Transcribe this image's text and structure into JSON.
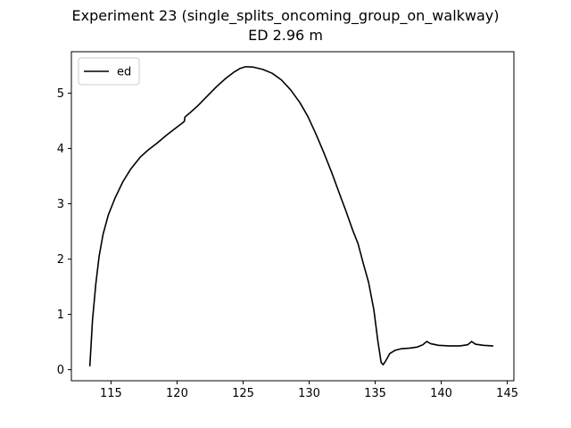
{
  "chart_data": {
    "type": "line",
    "title": "Experiment 23 (single_splits_oncoming_group_on_walkway)",
    "subtitle": "ED 2.96 m",
    "xlabel": "",
    "ylabel": "",
    "xlim": [
      112.0,
      145.5
    ],
    "ylim": [
      -0.2,
      5.75
    ],
    "xticks": [
      115,
      120,
      125,
      130,
      135,
      140,
      145
    ],
    "yticks": [
      0,
      1,
      2,
      3,
      4,
      5
    ],
    "grid": false,
    "legend": {
      "location": "upper left",
      "entries": [
        "ed"
      ]
    },
    "series": [
      {
        "name": "ed",
        "color": "#000000",
        "points": [
          [
            113.4,
            0.07
          ],
          [
            113.6,
            0.9
          ],
          [
            113.85,
            1.55
          ],
          [
            114.1,
            2.05
          ],
          [
            114.4,
            2.45
          ],
          [
            114.8,
            2.8
          ],
          [
            115.3,
            3.1
          ],
          [
            115.9,
            3.4
          ],
          [
            116.5,
            3.63
          ],
          [
            117.2,
            3.84
          ],
          [
            117.8,
            3.97
          ],
          [
            118.5,
            4.1
          ],
          [
            119.2,
            4.24
          ],
          [
            119.9,
            4.37
          ],
          [
            120.4,
            4.46
          ],
          [
            120.55,
            4.49
          ],
          [
            120.6,
            4.57
          ],
          [
            121.0,
            4.65
          ],
          [
            121.6,
            4.78
          ],
          [
            122.3,
            4.95
          ],
          [
            123.0,
            5.12
          ],
          [
            123.7,
            5.27
          ],
          [
            124.3,
            5.38
          ],
          [
            124.8,
            5.45
          ],
          [
            125.2,
            5.48
          ],
          [
            125.8,
            5.47
          ],
          [
            126.5,
            5.43
          ],
          [
            127.2,
            5.36
          ],
          [
            127.9,
            5.24
          ],
          [
            128.6,
            5.06
          ],
          [
            129.3,
            4.83
          ],
          [
            129.9,
            4.58
          ],
          [
            130.5,
            4.27
          ],
          [
            131.1,
            3.93
          ],
          [
            131.7,
            3.57
          ],
          [
            132.3,
            3.18
          ],
          [
            132.8,
            2.86
          ],
          [
            133.3,
            2.52
          ],
          [
            133.7,
            2.28
          ],
          [
            134.1,
            1.92
          ],
          [
            134.5,
            1.58
          ],
          [
            134.9,
            1.08
          ],
          [
            135.2,
            0.52
          ],
          [
            135.45,
            0.13
          ],
          [
            135.6,
            0.09
          ],
          [
            135.8,
            0.16
          ],
          [
            136.1,
            0.29
          ],
          [
            136.5,
            0.35
          ],
          [
            137.0,
            0.38
          ],
          [
            137.6,
            0.39
          ],
          [
            138.2,
            0.41
          ],
          [
            138.6,
            0.45
          ],
          [
            138.9,
            0.51
          ],
          [
            139.2,
            0.47
          ],
          [
            139.8,
            0.44
          ],
          [
            140.6,
            0.43
          ],
          [
            141.4,
            0.43
          ],
          [
            142.0,
            0.45
          ],
          [
            142.3,
            0.51
          ],
          [
            142.6,
            0.46
          ],
          [
            143.2,
            0.44
          ],
          [
            143.9,
            0.43
          ]
        ]
      }
    ]
  }
}
